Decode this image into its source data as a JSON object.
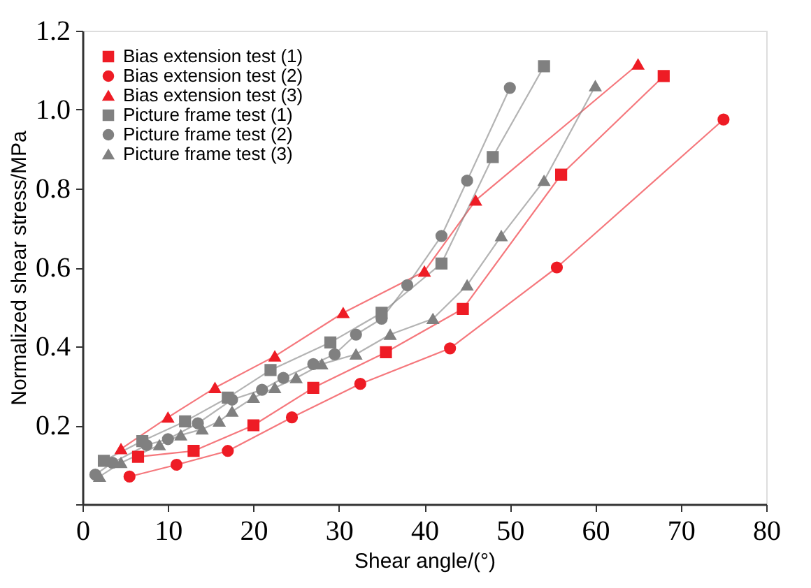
{
  "chart_data": {
    "type": "line",
    "xlabel": "Shear angle/(°)",
    "ylabel": "Normalized shear stress/MPa",
    "xlim": [
      0,
      80
    ],
    "ylim": [
      0,
      1.2
    ],
    "xticks": [
      0,
      10,
      20,
      30,
      40,
      50,
      60,
      70,
      80
    ],
    "yticks": [
      {
        "value": 0,
        "label": null
      },
      0.2,
      0.4,
      0.6,
      0.8,
      {
        "value": 1,
        "label": "1.0"
      },
      {
        "value": 1.2,
        "label": "1.2"
      }
    ],
    "grid": false,
    "legend": "top left",
    "line_style": "solid",
    "series": [
      {
        "name": "Bias extension test (1)",
        "color": "#ee1c25",
        "marker": "square",
        "x": [
          6.5,
          13,
          20,
          27,
          35.5,
          44.5,
          56,
          68
        ],
        "values": [
          0.12,
          0.135,
          0.2,
          0.295,
          0.385,
          0.495,
          0.835,
          1.085
        ]
      },
      {
        "name": "Bias extension test (2)",
        "color": "#ee1c25",
        "marker": "circle",
        "x": [
          5.5,
          11,
          17,
          24.5,
          32.5,
          43,
          55.5,
          75
        ],
        "values": [
          0.07,
          0.1,
          0.135,
          0.22,
          0.305,
          0.395,
          0.6,
          0.975
        ]
      },
      {
        "name": "Bias extension test (3)",
        "color": "#ee1c25",
        "marker": "triangle",
        "x": [
          4.5,
          10,
          15.5,
          22.5,
          30.5,
          40,
          46,
          65
        ],
        "values": [
          0.14,
          0.22,
          0.295,
          0.375,
          0.485,
          0.59,
          0.77,
          1.115
        ]
      },
      {
        "name": "Picture frame test (1)",
        "color": "#808080",
        "marker": "square",
        "x": [
          2.5,
          7,
          12,
          17,
          22,
          29,
          35,
          42,
          48,
          54
        ],
        "values": [
          0.11,
          0.16,
          0.21,
          0.27,
          0.34,
          0.41,
          0.485,
          0.61,
          0.88,
          1.11
        ]
      },
      {
        "name": "Picture frame test (2)",
        "color": "#808080",
        "marker": "circle",
        "x": [
          1.5,
          3.5,
          7.5,
          10,
          13.5,
          17.5,
          21,
          23.5,
          27,
          29.5,
          32,
          35,
          38,
          42,
          45,
          50
        ],
        "values": [
          0.075,
          0.105,
          0.15,
          0.165,
          0.205,
          0.265,
          0.29,
          0.32,
          0.355,
          0.38,
          0.43,
          0.47,
          0.555,
          0.68,
          0.82,
          1.055
        ]
      },
      {
        "name": "Picture frame test (3)",
        "color": "#808080",
        "marker": "triangle",
        "x": [
          2,
          4.5,
          9,
          11.5,
          14,
          16,
          17.5,
          20,
          22.5,
          25,
          28,
          32,
          36,
          41,
          45,
          49,
          54,
          60
        ],
        "values": [
          0.07,
          0.105,
          0.15,
          0.175,
          0.19,
          0.21,
          0.235,
          0.27,
          0.295,
          0.32,
          0.355,
          0.38,
          0.43,
          0.47,
          0.555,
          0.68,
          0.82,
          1.06
        ]
      }
    ]
  }
}
